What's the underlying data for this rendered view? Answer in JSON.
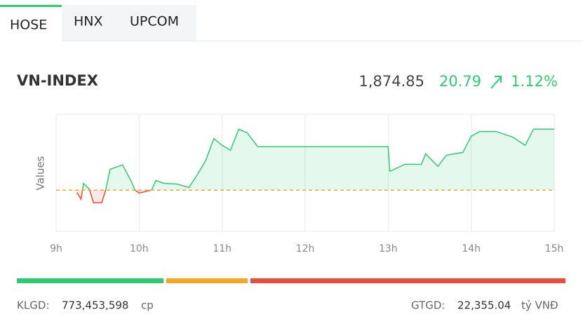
{
  "tabs": [
    "HOSE",
    "HNX",
    "UPCOM"
  ],
  "index": {
    "name": "VN-INDEX",
    "value": "1,874.85",
    "change": "20.79",
    "percent": "1.12%"
  },
  "chart_data": {
    "type": "line",
    "ylabel": "Values",
    "x": [
      9.25,
      9.3,
      9.33,
      9.4,
      9.45,
      9.55,
      9.6,
      9.65,
      9.75,
      9.8,
      9.9,
      9.95,
      10.0,
      10.15,
      10.2,
      10.3,
      10.45,
      10.6,
      10.7,
      10.8,
      10.9,
      11.0,
      11.1,
      11.2,
      11.3,
      11.43,
      13.0,
      13.02,
      13.2,
      13.4,
      13.45,
      13.6,
      13.7,
      13.9,
      14.0,
      14.1,
      14.3,
      14.5,
      14.65,
      14.75,
      15.0
    ],
    "series": [
      {
        "name": "VN-INDEX",
        "color": "#2ecc71",
        "values": [
          1853.3,
          1851.0,
          1856.4,
          1854.5,
          1849.8,
          1849.8,
          1854.5,
          1861.2,
          1862.2,
          1862.7,
          1857.4,
          1854.1,
          1853.1,
          1854.1,
          1857.4,
          1856.4,
          1856.2,
          1855.0,
          1859.3,
          1864.1,
          1871.7,
          1869.4,
          1867.7,
          1874.9,
          1873.7,
          1868.9,
          1868.9,
          1860.5,
          1862.9,
          1862.9,
          1866.5,
          1862.2,
          1866.0,
          1867.0,
          1872.5,
          1874.1,
          1874.1,
          1872.2,
          1869.4,
          1874.9,
          1874.9
        ]
      }
    ],
    "reference": 1854.06,
    "down_color": "#e74c3c",
    "reference_color": "#f5a623",
    "xlim": [
      9,
      15
    ],
    "ylim": [
      1840,
      1880
    ],
    "xticks": [
      {
        "value": 9,
        "label": "9h"
      },
      {
        "value": 10,
        "label": "10h"
      },
      {
        "value": 11,
        "label": "11h"
      },
      {
        "value": 12,
        "label": "12h"
      },
      {
        "value": 13,
        "label": "13h"
      },
      {
        "value": 14,
        "label": "14h"
      },
      {
        "value": 15,
        "label": "15h"
      }
    ],
    "grid": true
  },
  "breadth": [
    {
      "color": "#2ecc71",
      "value": 209
    },
    {
      "color": "#f5a623",
      "value": 116
    },
    {
      "color": "#e74c3c",
      "value": 449
    }
  ],
  "footer": {
    "volume_label": "KLGD:",
    "volume": "773,453,598",
    "volume_unit": "cp",
    "value_label": "GTGD:",
    "value": "22,355.04",
    "value_unit": "tỷ VNĐ"
  }
}
